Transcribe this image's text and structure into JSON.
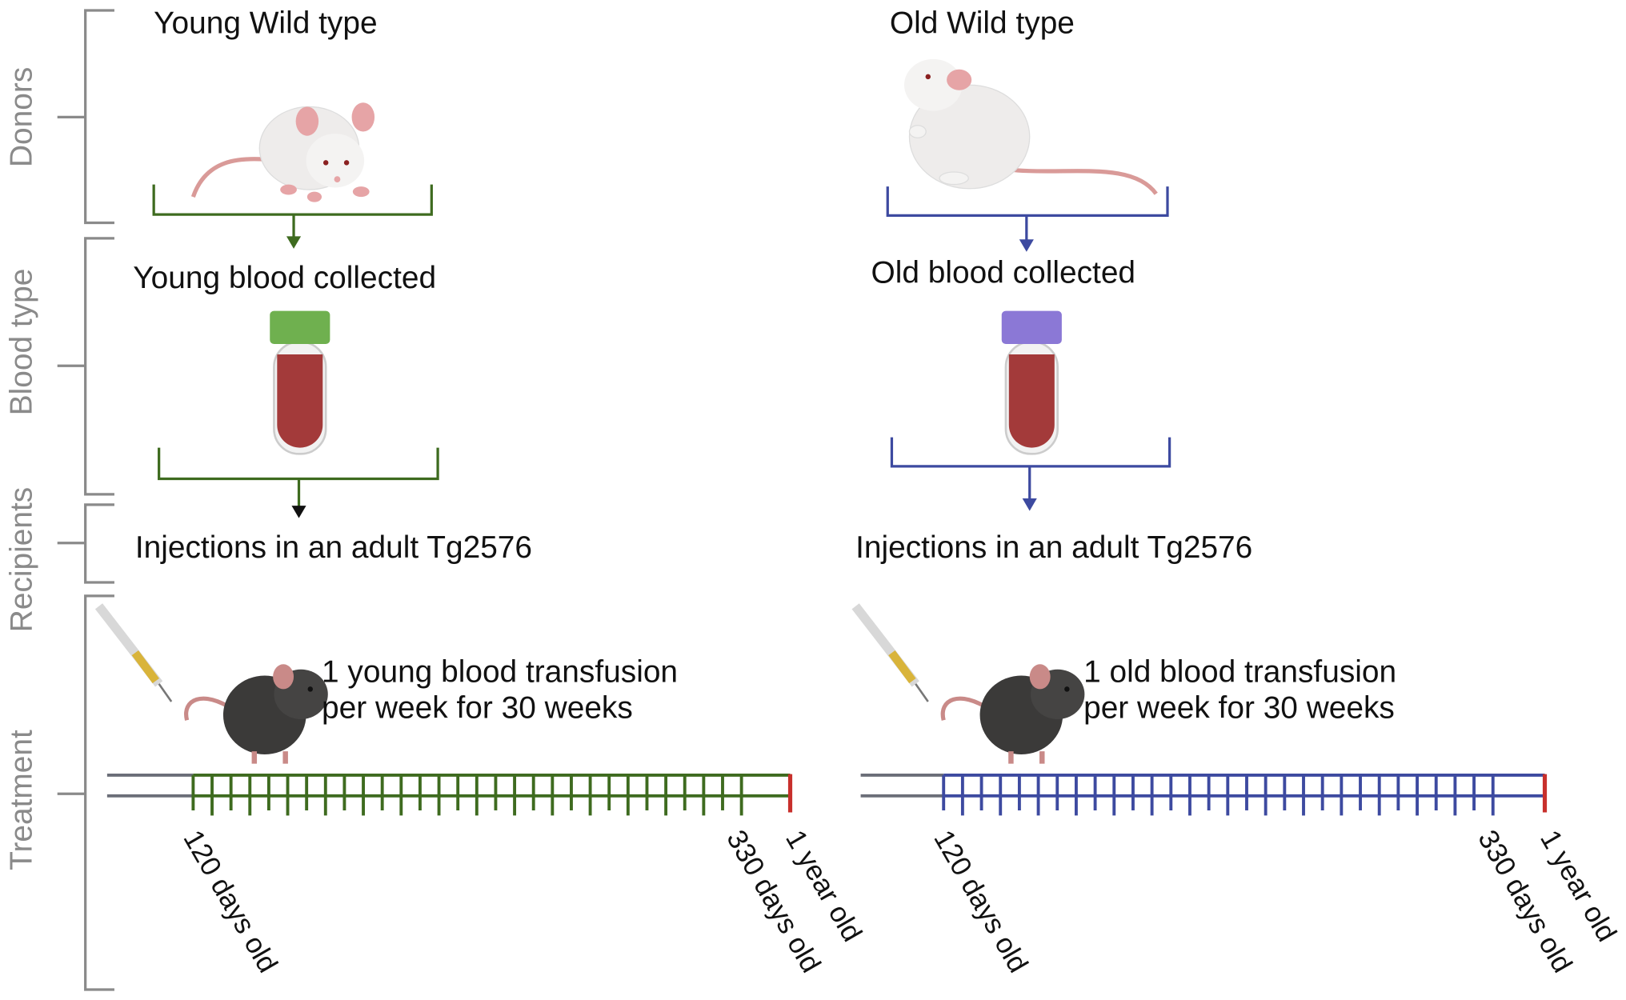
{
  "side_labels": [
    "Donors",
    "Blood type",
    "Recipients",
    "Treatment"
  ],
  "colors": {
    "young": "#3e6b1f",
    "old": "#3d4aa0",
    "end_marker": "#c8302c",
    "axis": "#8a8a8a",
    "pre_treatment": "#6b6e78"
  },
  "icons": [
    "white-mouse",
    "blood-tube",
    "syringe",
    "black-mouse"
  ],
  "young": {
    "donor": "Young Wild type",
    "blood": "Young blood collected",
    "recipient": "Injections in an adult Tg2576",
    "treatment_line1": "1 young blood transfusion",
    "treatment_line2": "per week for 30 weeks",
    "start": "120 days old",
    "last": "330 days old",
    "end": "1 year old",
    "weekly_injections": 30
  },
  "old": {
    "donor": "Old Wild type",
    "blood": "Old blood collected",
    "recipient": "Injections in an adult Tg2576",
    "treatment_line1": "1 old blood transfusion",
    "treatment_line2": "per week for 30 weeks",
    "start": "120 days old",
    "last": "330 days old",
    "end": "1 year old",
    "weekly_injections": 30
  }
}
